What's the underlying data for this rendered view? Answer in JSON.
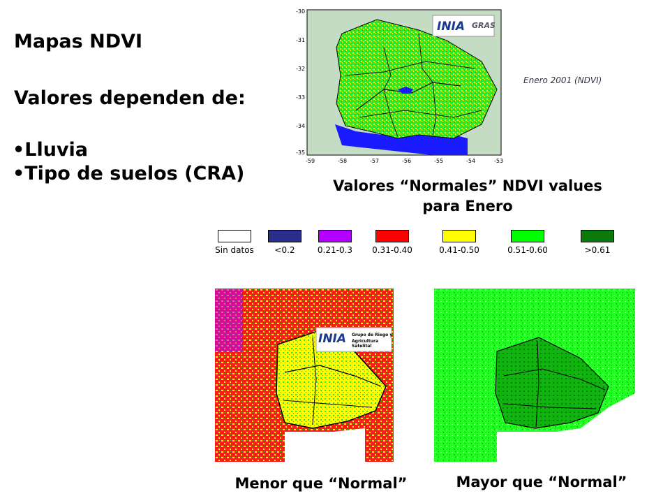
{
  "slide": {
    "title": "Mapas NDVI",
    "subtitle": "Valores dependen de:",
    "bullets": [
      "Lluvia",
      "Tipo de suelos (CRA)"
    ]
  },
  "top_map": {
    "date_label": "Enero 2001 (NDVI)",
    "caption_line1": "Valores “Normales” NDVI values",
    "caption_line2": "para Enero",
    "logo_text": "INIA",
    "logo_secondary": "GRAS",
    "x_ticks": [
      "-59",
      "-58",
      "-57",
      "-56",
      "-55",
      "-54",
      "-53"
    ],
    "y_ticks": [
      "-30",
      "-31",
      "-32",
      "-33",
      "-34",
      "-35"
    ]
  },
  "legend": [
    {
      "label": "Sin datos",
      "color": "#ffffff"
    },
    {
      "label": "<0.2",
      "color": "#2b2d8c"
    },
    {
      "label": "0.21-0.3",
      "color": "#b400ff"
    },
    {
      "label": "0.31-0.40",
      "color": "#ff0000"
    },
    {
      "label": "0.41-0.50",
      "color": "#ffff00"
    },
    {
      "label": "0.51-0.60",
      "color": "#00ff00"
    },
    {
      "label": ">0.61",
      "color": "#0a7a0a"
    }
  ],
  "bottom_left_map": {
    "caption": "Menor que “Normal”",
    "logo_text": "INIA",
    "logo_line1": "Grupo de Riego y",
    "logo_line2": "Agricultura Satelital"
  },
  "bottom_right_map": {
    "caption": "Mayor que “Normal”"
  }
}
